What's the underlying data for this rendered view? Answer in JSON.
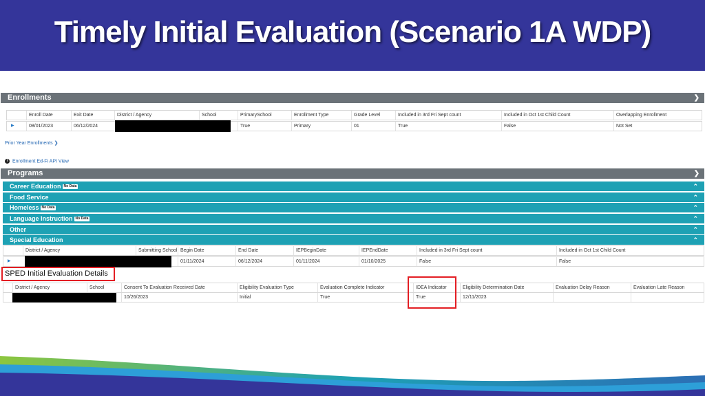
{
  "title": "Timely Initial Evaluation (Scenario 1A WDP)",
  "colors": {
    "banner": "#34359a",
    "section_header": "#6b7278",
    "program_row": "#1ea1b4",
    "highlight": "#e31d23",
    "link": "#2367b3"
  },
  "enrollments": {
    "header": "Enrollments",
    "chevron_icon": "chevron-down-icon",
    "columns": [
      "Enroll Date",
      "Exit Date",
      "District / Agency",
      "School",
      "PrimarySchool",
      "Enrollment Type",
      "Grade Level",
      "Included in 3rd Fri Sept count",
      "Included in Oct 1st Child Count",
      "Overlapping Enrollment"
    ],
    "row": {
      "enroll_date": "08/01/2023",
      "exit_date": "06/12/2024",
      "primary_school": "True",
      "enrollment_type": "Primary",
      "grade_level": "01",
      "third_fri": "True",
      "oct_first": "False",
      "overlapping": "Not Set"
    },
    "prior_year_link": "Prior Year Enrollments",
    "edfi_link": "Enrollment Ed-Fi API View"
  },
  "programs": {
    "header": "Programs",
    "items": [
      {
        "label": "Career Education",
        "badge": "No Data"
      },
      {
        "label": "Food Service",
        "badge": ""
      },
      {
        "label": "Homeless",
        "badge": "No Data"
      },
      {
        "label": "Language Instruction",
        "badge": "No Data"
      },
      {
        "label": "Other",
        "badge": ""
      },
      {
        "label": "Special Education",
        "badge": ""
      }
    ]
  },
  "sped": {
    "columns": [
      "District / Agency",
      "Submitting School",
      "Begin Date",
      "End Date",
      "IEPBeginDate",
      "IEPEndDate",
      "Included in 3rd Fri Sept count",
      "Included in Oct 1st Child Count"
    ],
    "row": {
      "begin_date": "01/11/2024",
      "end_date": "06/12/2024",
      "iep_begin": "01/11/2024",
      "iep_end": "01/10/2025",
      "third_fri": "False",
      "oct_first": "False"
    }
  },
  "initial_eval": {
    "title": "SPED Initial Evaluation Details",
    "columns": [
      "District / Agency",
      "School",
      "Consent To Evaluation Received Date",
      "Eligibility Evaluation Type",
      "Evaluation Complete Indicator",
      "IDEA Indicator",
      "Eligibility Determination Date",
      "Evaluation Delay Reason",
      "Evaluation Late Reason"
    ],
    "row": {
      "consent_date": "10/26/2023",
      "eval_type": "Initial",
      "eval_complete": "True",
      "idea_indicator": "True",
      "determination_date": "12/11/2023",
      "delay_reason": "",
      "late_reason": ""
    }
  }
}
